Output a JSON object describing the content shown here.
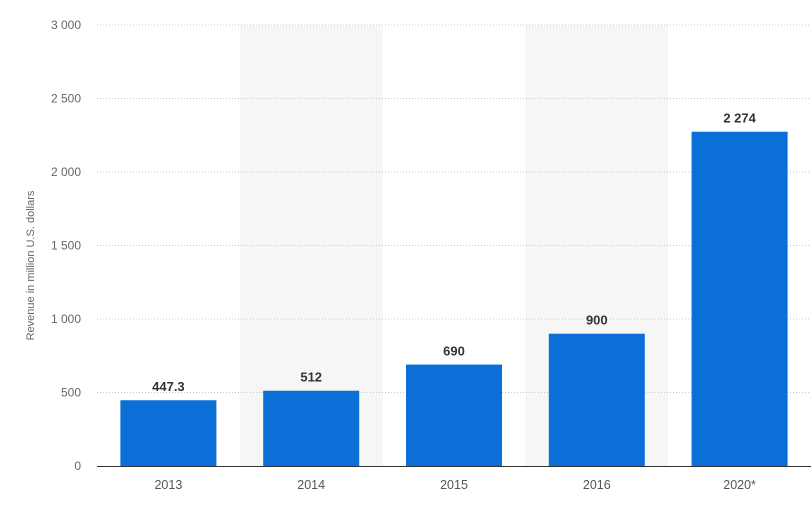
{
  "chart_data": {
    "type": "bar",
    "categories": [
      "2013",
      "2014",
      "2015",
      "2016",
      "2020*"
    ],
    "values": [
      447.3,
      512,
      690,
      900,
      2274
    ],
    "value_labels": [
      "447.3",
      "512",
      "690",
      "900",
      "2 274"
    ],
    "title": "",
    "xlabel": "",
    "ylabel": "Revenue in million U.S. dollars",
    "ylim": [
      0,
      3000
    ],
    "yticks": [
      0,
      500,
      1000,
      1500,
      2000,
      2500,
      3000
    ],
    "ytick_labels": [
      "0",
      "500",
      "1 000",
      "1 500",
      "2 000",
      "2 500",
      "3 000"
    ],
    "grid": true,
    "legend": "none",
    "colors": {
      "bar": "#0a6fd6",
      "band": "#f6f6f6",
      "grid": "#c8c8c8",
      "axis": "#333333"
    }
  }
}
